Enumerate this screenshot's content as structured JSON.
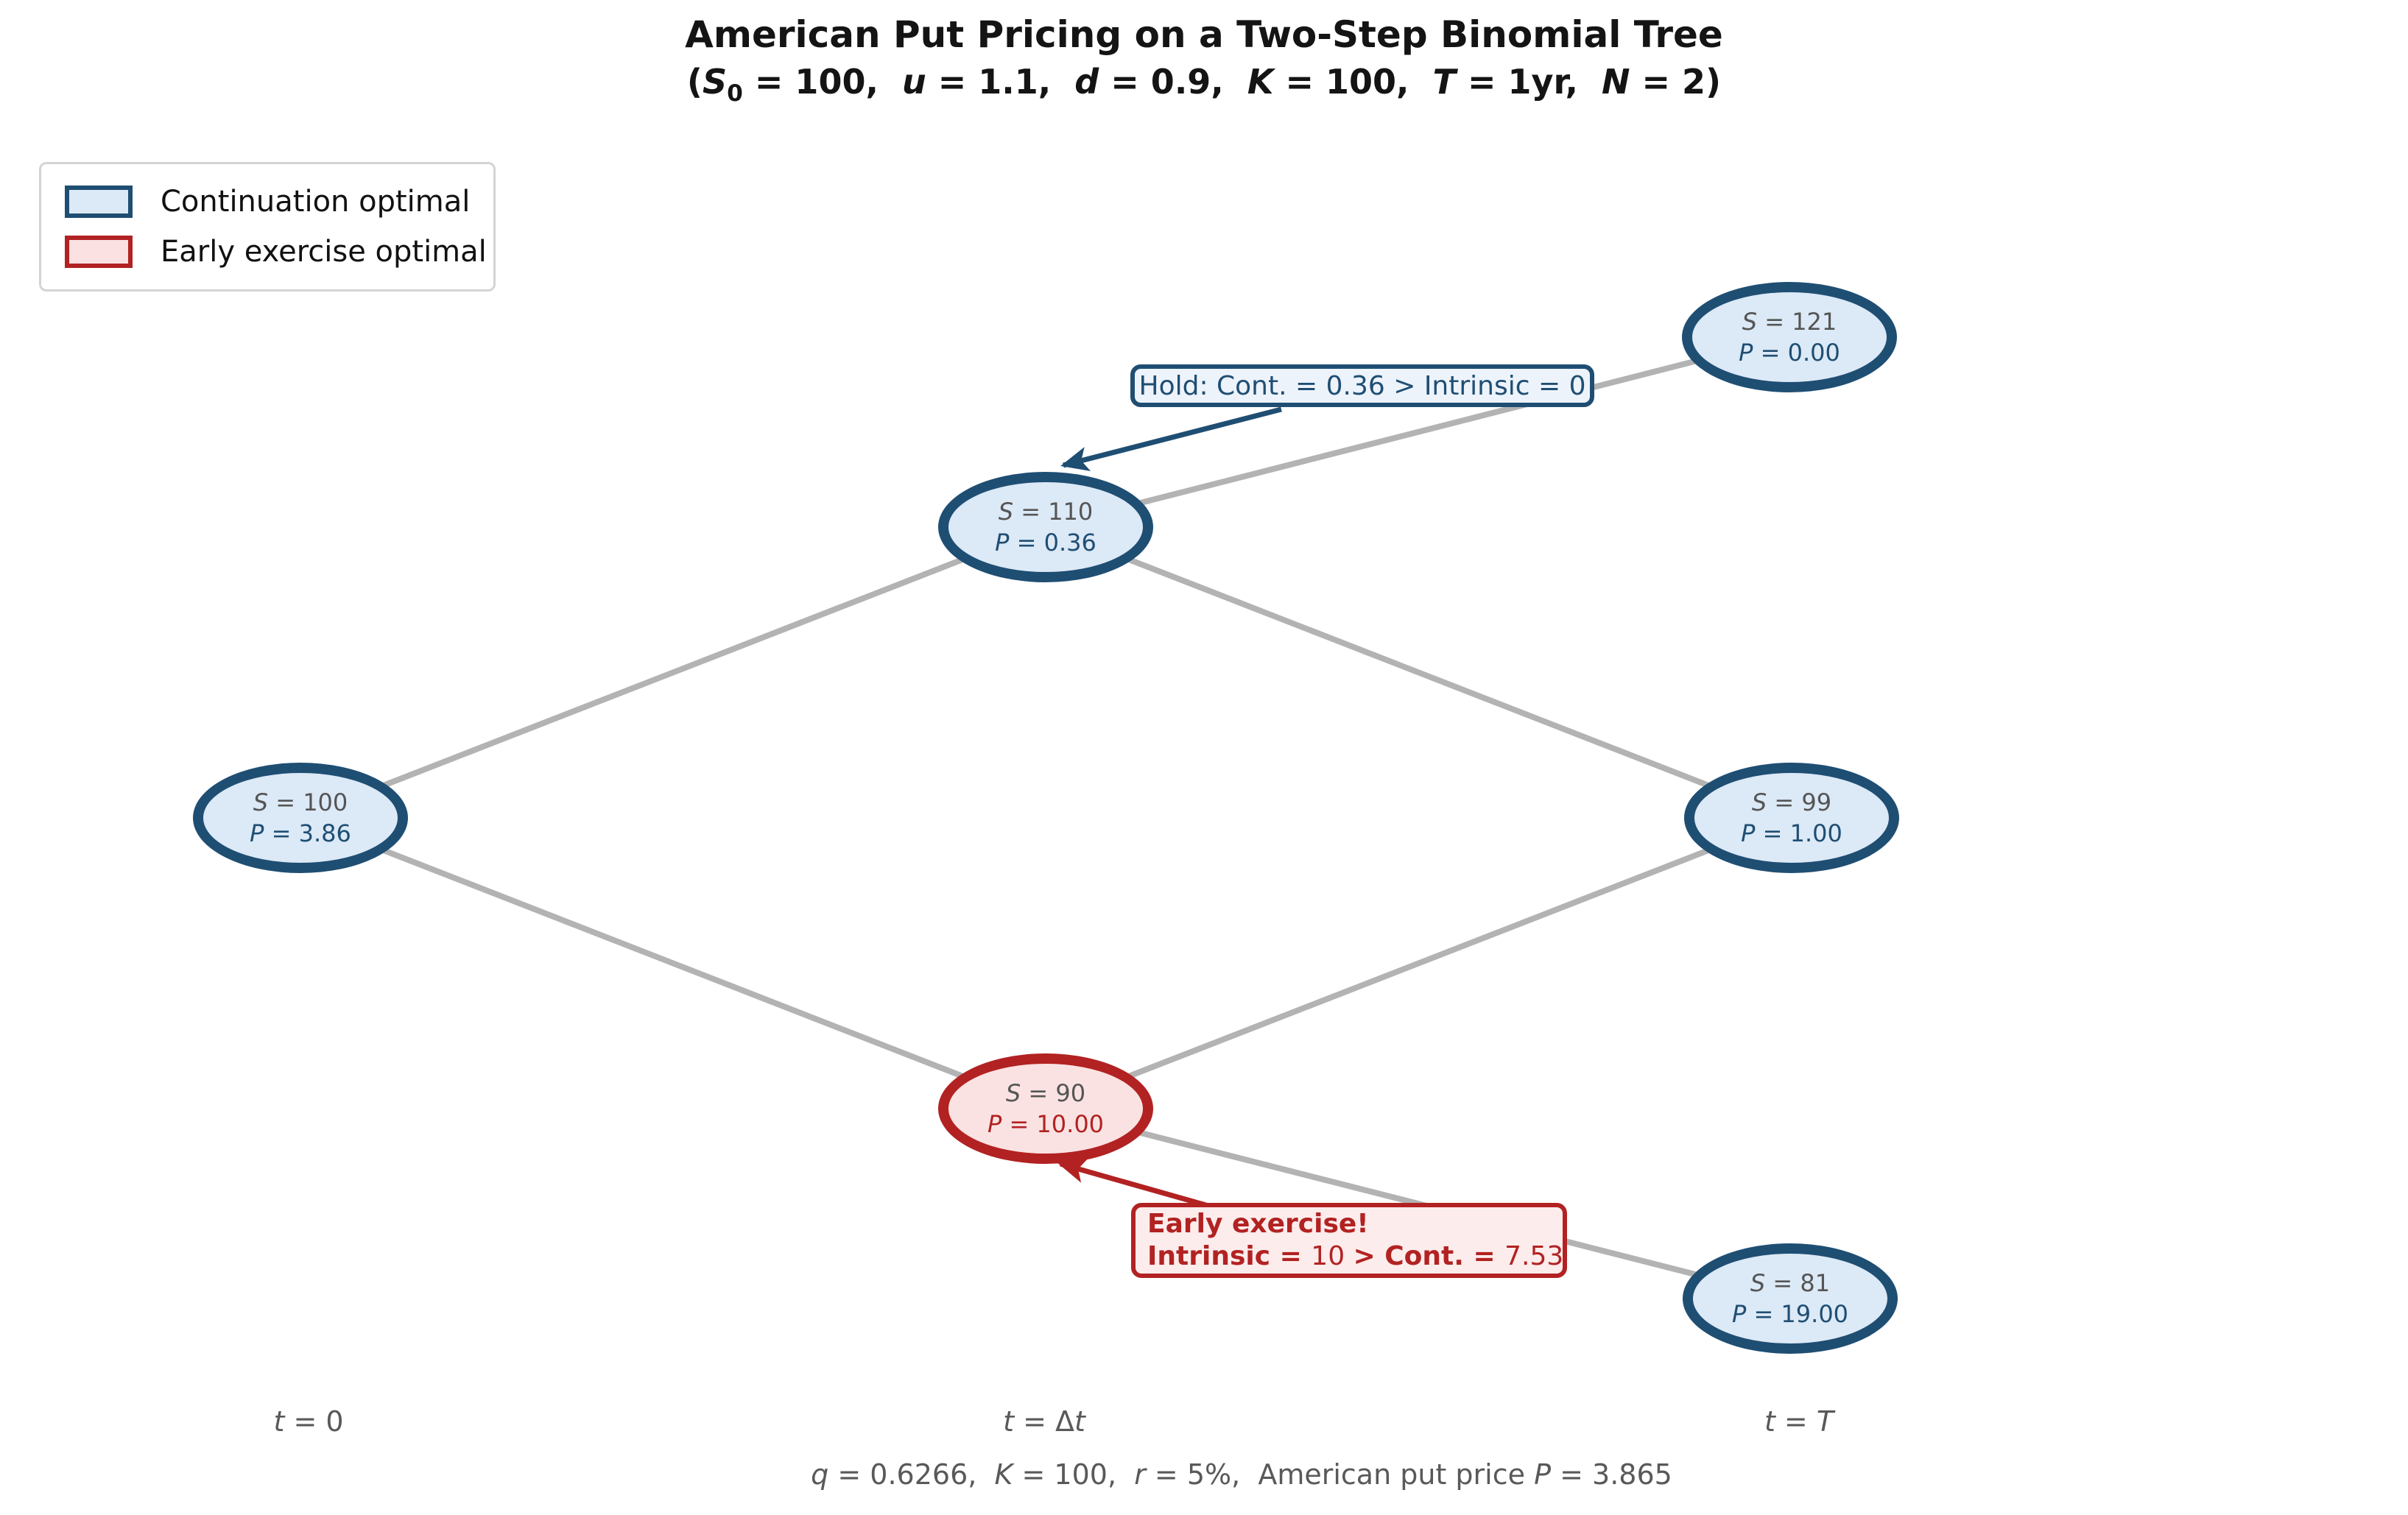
{
  "header": {
    "title": "American Put Pricing on a Two-Step Binomial Tree",
    "subtitle_parts": [
      {
        "t": "("
      },
      {
        "t": "S",
        "i": 1
      },
      {
        "t": "0",
        "sub": 1
      },
      {
        "t": " = 100,  "
      },
      {
        "t": "u",
        "i": 1
      },
      {
        "t": " = 1.1,  "
      },
      {
        "t": "d",
        "i": 1
      },
      {
        "t": " = 0.9,  "
      },
      {
        "t": "K",
        "i": 1
      },
      {
        "t": " = 100,  "
      },
      {
        "t": "T",
        "i": 1
      },
      {
        "t": " = 1yr,  "
      },
      {
        "t": "N",
        "i": 1
      },
      {
        "t": " = 2)"
      }
    ]
  },
  "legend": {
    "items": [
      {
        "label": "Continuation optimal",
        "fill": "#dce9f6",
        "border": "#1f4e73"
      },
      {
        "label": "Early exercise optimal",
        "fill": "#fbe1e1",
        "border": "#b22222"
      }
    ]
  },
  "tree": {
    "nodes": [
      {
        "id": "root",
        "time": "t=0",
        "stock": 100,
        "put": "3.86",
        "style": "blue",
        "s_parts": [
          {
            "t": "S",
            "i": 1
          },
          {
            "t": " = 100"
          }
        ],
        "p_parts": [
          {
            "t": "P",
            "i": 1
          },
          {
            "t": " = 3.86"
          }
        ]
      },
      {
        "id": "up",
        "time": "t=dt",
        "stock": 110,
        "put": "0.36",
        "style": "blue",
        "s_parts": [
          {
            "t": "S",
            "i": 1
          },
          {
            "t": " = 110"
          }
        ],
        "p_parts": [
          {
            "t": "P",
            "i": 1
          },
          {
            "t": " = 0.36"
          }
        ]
      },
      {
        "id": "down",
        "time": "t=dt",
        "stock": 90,
        "put": "10.00",
        "style": "red",
        "s_parts": [
          {
            "t": "S",
            "i": 1
          },
          {
            "t": " = 90"
          }
        ],
        "p_parts": [
          {
            "t": "P",
            "i": 1
          },
          {
            "t": " = 10.00"
          }
        ]
      },
      {
        "id": "up-up",
        "time": "t=T",
        "stock": 121,
        "put": "0.00",
        "style": "blue",
        "s_parts": [
          {
            "t": "S",
            "i": 1
          },
          {
            "t": " = 121"
          }
        ],
        "p_parts": [
          {
            "t": "P",
            "i": 1
          },
          {
            "t": " = 0.00"
          }
        ]
      },
      {
        "id": "up-down",
        "time": "t=T",
        "stock": 99,
        "put": "1.00",
        "style": "blue",
        "s_parts": [
          {
            "t": "S",
            "i": 1
          },
          {
            "t": " = 99"
          }
        ],
        "p_parts": [
          {
            "t": "P",
            "i": 1
          },
          {
            "t": " = 1.00"
          }
        ]
      },
      {
        "id": "down-down",
        "time": "t=T",
        "stock": 81,
        "put": "19.00",
        "style": "blue",
        "s_parts": [
          {
            "t": "S",
            "i": 1
          },
          {
            "t": " = 81"
          }
        ],
        "p_parts": [
          {
            "t": "P",
            "i": 1
          },
          {
            "t": " = 19.00"
          }
        ]
      }
    ],
    "edges": [
      [
        "root",
        "up"
      ],
      [
        "root",
        "down"
      ],
      [
        "up",
        "up-up"
      ],
      [
        "up",
        "up-down"
      ],
      [
        "down",
        "up-down"
      ],
      [
        "down",
        "down-down"
      ]
    ]
  },
  "annotations": {
    "hold": {
      "text": "Hold: Cont. = 0.36 > Intrinsic = 0"
    },
    "early": {
      "line1": "Early exercise!",
      "line2_parts": [
        {
          "t": "Intrinsic = ",
          "b": 1
        },
        {
          "t": "10"
        },
        {
          "t": " "
        },
        {
          "t": "> Cont. = ",
          "b": 1
        },
        {
          "t": "7.53"
        }
      ]
    }
  },
  "axis_labels": {
    "t0_parts": [
      {
        "t": "t",
        "i": 1
      },
      {
        "t": " = 0"
      }
    ],
    "tdt_parts": [
      {
        "t": "t",
        "i": 1
      },
      {
        "t": " = Δ"
      },
      {
        "t": "t",
        "i": 1
      }
    ],
    "tT_parts": [
      {
        "t": "t",
        "i": 1
      },
      {
        "t": " = "
      },
      {
        "t": "T",
        "i": 1
      }
    ]
  },
  "footer_parts": [
    {
      "t": "q",
      "i": 1
    },
    {
      "t": " = 0.6266,  "
    },
    {
      "t": "K",
      "i": 1
    },
    {
      "t": " = 100,  "
    },
    {
      "t": "r",
      "i": 1
    },
    {
      "t": " = 5%,  American put price "
    },
    {
      "t": "P",
      "i": 1
    },
    {
      "t": " = 3.865"
    }
  ],
  "colors": {
    "continuation_fill": "#dce9f6",
    "continuation_border": "#1f4e73",
    "exercise_fill": "#fbe2e2",
    "exercise_border": "#b22222",
    "edge_gray": "#b3b3b3",
    "stock_text": "#555555",
    "muted_text": "#595959"
  }
}
